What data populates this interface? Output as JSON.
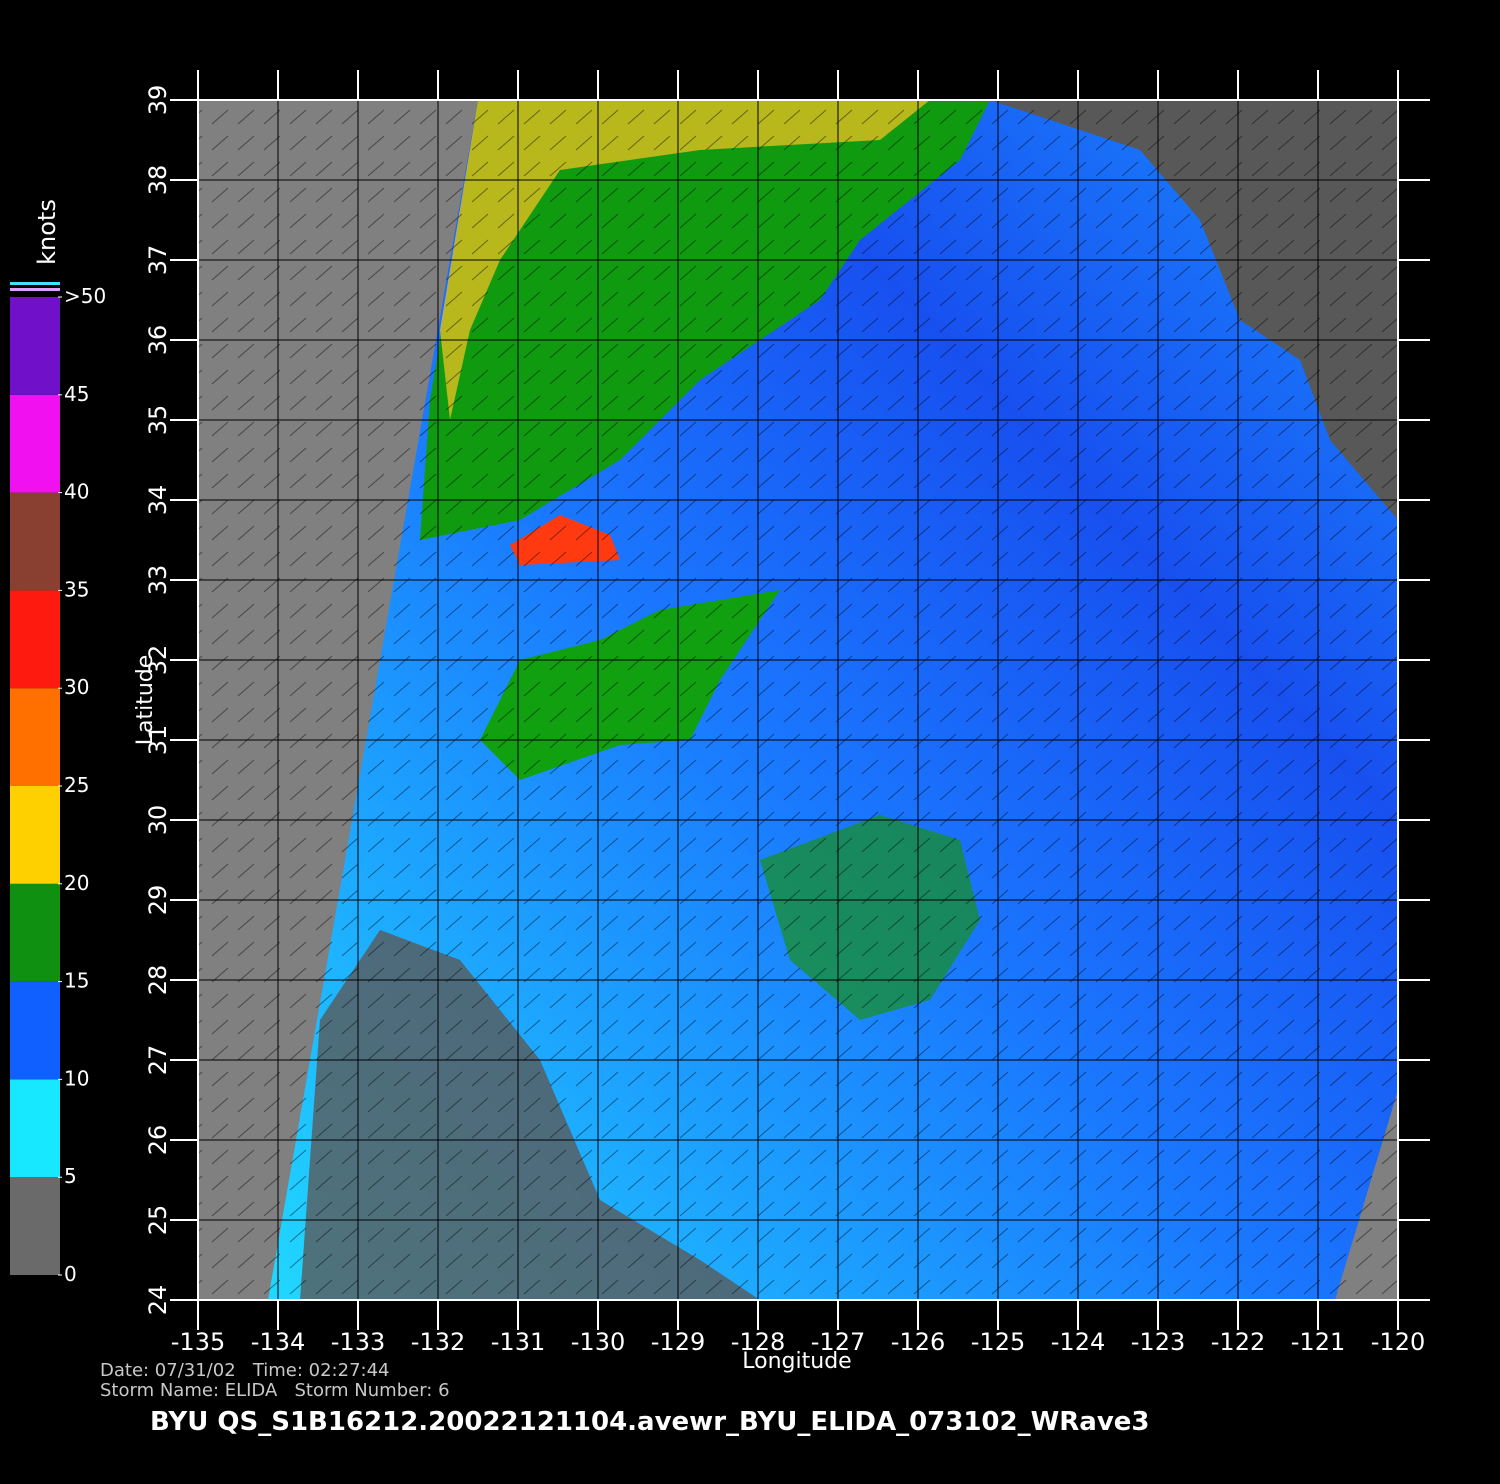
{
  "map": {
    "x_label": "Longitude",
    "y_label": "Latitude",
    "xlim": [
      -135,
      -120
    ],
    "ylim": [
      24,
      39
    ],
    "xticks": [
      -135,
      -134,
      -133,
      -132,
      -131,
      -130,
      -129,
      -128,
      -127,
      -126,
      -125,
      -124,
      -123,
      -122,
      -121,
      -120
    ],
    "yticks": [
      24,
      25,
      26,
      27,
      28,
      29,
      30,
      31,
      32,
      33,
      34,
      35,
      36,
      37,
      38,
      39
    ],
    "grid": true,
    "colorbar": {
      "label": "knots",
      "lim": [
        0,
        50
      ],
      "ticks": [
        0,
        5,
        10,
        15,
        20,
        25,
        30,
        35,
        40,
        45,
        {
          "value": 50,
          "label": ">50"
        }
      ],
      "colors": [
        "#6a6a6a",
        "#18e8ff",
        "#1060ff",
        "#109010",
        "#ffd000",
        "#ff7000",
        "#ff1a10",
        "#8a4030",
        "#f010f0",
        "#7010c8"
      ]
    },
    "footer": {
      "line1": "Date: 07/31/02   Time: 02:27:44",
      "line2": "Storm Name: ELIDA   Storm Number: 6",
      "title": "BYU  QS_S1B16212.20022121104.avewr_BYU_ELIDA_073102_WRave3"
    }
  }
}
